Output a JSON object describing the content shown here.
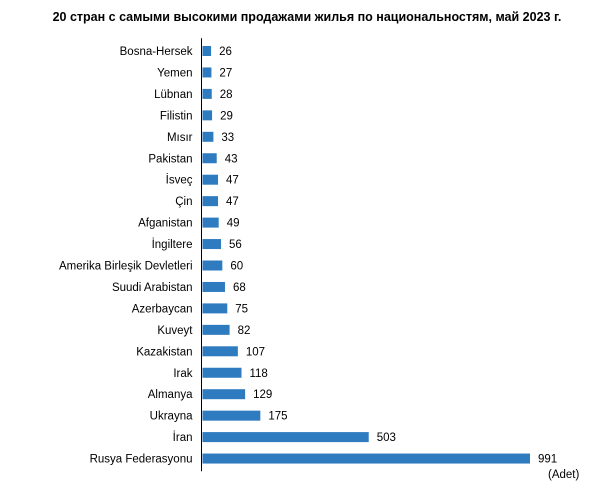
{
  "chart_data": {
    "type": "bar",
    "orientation": "horizontal",
    "title": "20 стран с самыми высокими продажами жилья по национальностям, май 2023 г.",
    "unit_label": "(Adet)",
    "categories": [
      "Bosna-Hersek",
      "Yemen",
      "Lübnan",
      "Filistin",
      "Mısır",
      "Pakistan",
      "İsveç",
      "Çin",
      "Afganistan",
      "İngiltere",
      "Amerika Birleşik Devletleri",
      "Suudi Arabistan",
      "Azerbaycan",
      "Kuveyt",
      "Kazakistan",
      "Irak",
      "Almanya",
      "Ukrayna",
      "İran",
      "Rusya Federasyonu"
    ],
    "values": [
      26,
      27,
      28,
      29,
      33,
      43,
      47,
      47,
      49,
      56,
      60,
      68,
      75,
      82,
      107,
      118,
      129,
      175,
      503,
      991
    ],
    "value_labels": [
      "26",
      "27",
      "28",
      "29",
      "33",
      "43",
      "47",
      "47",
      "49",
      "56",
      "60",
      "68",
      "75",
      "82",
      "107",
      "118",
      "129",
      "175",
      "503",
      "991"
    ],
    "xlim": [
      0,
      1100
    ],
    "bar_color": "#2e7bbf",
    "grid": false,
    "legend": "none"
  }
}
